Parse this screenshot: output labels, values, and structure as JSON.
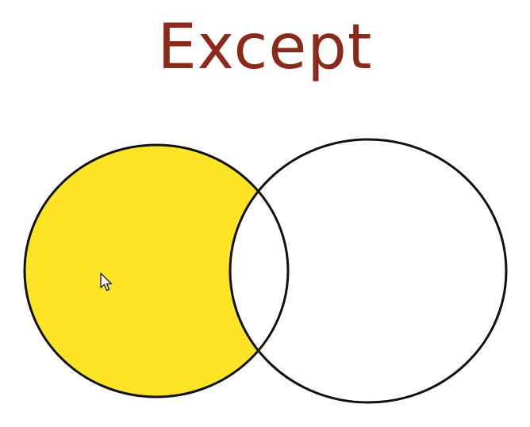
{
  "title": "Except",
  "colors": {
    "title": "#8b2a1a",
    "fill_left_only": "#fde427",
    "stroke": "#111111",
    "background": "#ffffff"
  },
  "diagram": {
    "type": "venn",
    "sets": [
      "left-circle",
      "right-circle"
    ],
    "highlighted_region": "left-only"
  },
  "icons": {
    "cursor": "mouse-pointer-icon"
  }
}
